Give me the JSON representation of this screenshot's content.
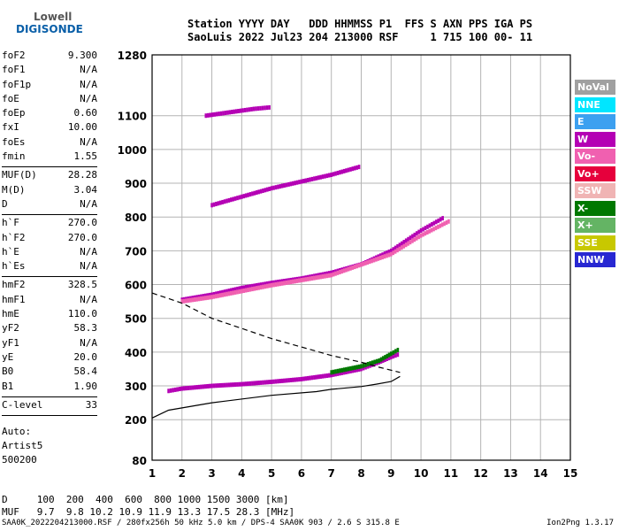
{
  "logo": {
    "line1": "Lowell",
    "line2": "DIGISONDE"
  },
  "header": {
    "labels": "Station YYYY DAY   DDD HHMMSS P1  FFS S AXN PPS IGA PS",
    "values": "SaoLuis 2022 Jul23 204 213000 RSF     1 715 100 00- 11"
  },
  "params": [
    {
      "name": "foF2",
      "value": "9.300"
    },
    {
      "name": "foF1",
      "value": "N/A"
    },
    {
      "name": "foF1p",
      "value": "N/A"
    },
    {
      "name": "foE",
      "value": "N/A"
    },
    {
      "name": "foEp",
      "value": "0.60"
    },
    {
      "name": "fxI",
      "value": "10.00"
    },
    {
      "name": "foEs",
      "value": "N/A"
    },
    {
      "name": "fmin",
      "value": "1.55"
    },
    {
      "sep": true
    },
    {
      "name": "MUF(D)",
      "value": "28.28"
    },
    {
      "name": "M(D)",
      "value": "3.04"
    },
    {
      "name": "D",
      "value": "N/A"
    },
    {
      "sep": true
    },
    {
      "name": "h`F",
      "value": "270.0"
    },
    {
      "name": "h`F2",
      "value": "270.0"
    },
    {
      "name": "h`E",
      "value": "N/A"
    },
    {
      "name": "h`Es",
      "value": "N/A"
    },
    {
      "sep": true
    },
    {
      "name": "hmF2",
      "value": "328.5"
    },
    {
      "name": "hmF1",
      "value": "N/A"
    },
    {
      "name": "hmE",
      "value": "110.0"
    },
    {
      "name": "yF2",
      "value": "58.3"
    },
    {
      "name": "yF1",
      "value": "N/A"
    },
    {
      "name": "yE",
      "value": "20.0"
    },
    {
      "name": "B0",
      "value": "58.4"
    },
    {
      "name": "B1",
      "value": "1.90"
    },
    {
      "sep": true
    },
    {
      "name": "C-level",
      "value": "33"
    },
    {
      "sep": true
    }
  ],
  "auto": {
    "line1": "Auto:",
    "line2": "Artist5",
    "line3": "500200"
  },
  "footer": {
    "d_row": "D     100  200  400  600  800 1000 1500 3000 [km]",
    "muf_row": "MUF   9.7  9.8 10.2 10.9 11.9 13.3 17.5 28.3 [MHz]"
  },
  "bottom_line": "SAA0K_2022204213000.RSF / 280fx256h 50 kHz 5.0 km / DPS-4 SAA0K 903 / 2.6 S 315.8 E",
  "version": "Ion2Png 1.3.17",
  "legend": [
    {
      "label": "NoVal",
      "color": "#a0a0a0"
    },
    {
      "label": "NNE",
      "color": "#00e6ff"
    },
    {
      "label": "E",
      "color": "#3ca0f0"
    },
    {
      "label": "W",
      "color": "#b400b4"
    },
    {
      "label": "Vo-",
      "color": "#f060b0"
    },
    {
      "label": "Vo+",
      "color": "#e6003c"
    },
    {
      "label": "SSW",
      "color": "#f0b4b4"
    },
    {
      "label": "X-",
      "color": "#007800"
    },
    {
      "label": "X+",
      "color": "#64b464"
    },
    {
      "label": "SSE",
      "color": "#c8c800"
    },
    {
      "label": "NNW",
      "color": "#2828d2"
    }
  ],
  "chart_data": {
    "type": "scatter",
    "xlim": [
      1,
      15
    ],
    "ylim": [
      80,
      1280
    ],
    "x_ticks": [
      "1",
      "2",
      "3",
      "4",
      "5",
      "6",
      "7",
      "8",
      "9",
      "10",
      "11",
      "12",
      "13",
      "14",
      "15"
    ],
    "y_ticks": [
      "80",
      "200",
      "300",
      "400",
      "500",
      "600",
      "700",
      "800",
      "900",
      "1000",
      "1100",
      "1280"
    ],
    "grid": true,
    "traces": [
      {
        "name": "o1",
        "color": "#b400b4",
        "points": [
          [
            1.55,
            285
          ],
          [
            2,
            292
          ],
          [
            3,
            300
          ],
          [
            4,
            305
          ],
          [
            5,
            312
          ],
          [
            6,
            320
          ],
          [
            7,
            332
          ],
          [
            8,
            350
          ],
          [
            8.6,
            370
          ],
          [
            9,
            385
          ],
          [
            9.3,
            395
          ]
        ]
      },
      {
        "name": "x1",
        "color": "#007800",
        "points": [
          [
            7,
            340
          ],
          [
            8,
            358
          ],
          [
            8.6,
            375
          ],
          [
            9,
            395
          ],
          [
            9.3,
            410
          ]
        ]
      },
      {
        "name": "o2",
        "color": "#b400b4",
        "points": [
          [
            2,
            555
          ],
          [
            3,
            570
          ],
          [
            4,
            590
          ],
          [
            5,
            605
          ],
          [
            6,
            618
          ],
          [
            7,
            635
          ],
          [
            8,
            660
          ],
          [
            9,
            700
          ],
          [
            10,
            760
          ],
          [
            10.8,
            800
          ]
        ]
      },
      {
        "name": "o2b",
        "color": "#f060b0",
        "points": [
          [
            2,
            550
          ],
          [
            3,
            563
          ],
          [
            5,
            598
          ],
          [
            7,
            628
          ],
          [
            9,
            690
          ],
          [
            10,
            745
          ],
          [
            11,
            790
          ]
        ]
      },
      {
        "name": "o3",
        "color": "#b400b4",
        "points": [
          [
            3,
            835
          ],
          [
            4,
            860
          ],
          [
            5,
            885
          ],
          [
            6,
            905
          ],
          [
            7,
            925
          ],
          [
            8,
            950
          ]
        ]
      },
      {
        "name": "o4",
        "color": "#b400b4",
        "points": [
          [
            2.8,
            1100
          ],
          [
            3.6,
            1110
          ],
          [
            4.4,
            1120
          ],
          [
            5,
            1125
          ]
        ]
      }
    ],
    "profile": [
      [
        1,
        205
      ],
      [
        1.55,
        228
      ],
      [
        3,
        250
      ],
      [
        5,
        272
      ],
      [
        6.5,
        283
      ],
      [
        7,
        290
      ],
      [
        8,
        298
      ],
      [
        8.5,
        305
      ],
      [
        9,
        313
      ],
      [
        9.3,
        328
      ]
    ],
    "maxprofile": [
      [
        1,
        575
      ],
      [
        2,
        545
      ],
      [
        3,
        500
      ],
      [
        4,
        470
      ],
      [
        5,
        440
      ],
      [
        6,
        415
      ],
      [
        7,
        390
      ],
      [
        8,
        370
      ],
      [
        8.6,
        355
      ],
      [
        9.3,
        340
      ]
    ]
  }
}
